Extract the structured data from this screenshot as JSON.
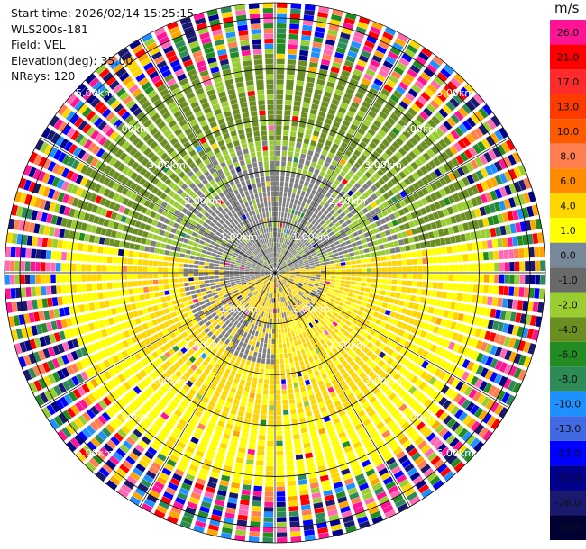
{
  "header": {
    "start_time": "Start time: 2026/02/14 15:25:15",
    "instrument": "WLS200s-181",
    "field": "Field: VEL",
    "elevation": "Elevation(deg): 35.00",
    "nrays": "NRays: 120"
  },
  "chart_data": {
    "type": "heatmap",
    "projection": "polar-ppi",
    "field": "VEL",
    "units": "m/s",
    "n_rays": 120,
    "range_rings_km": [
      1,
      2,
      3,
      4,
      5
    ],
    "ring_labels": [
      "1.00km",
      "2.00km",
      "3.00km",
      "4.00km",
      "5.00km"
    ],
    "max_range_km": 5.3,
    "spokes_deg": [
      0,
      30,
      60,
      90,
      120,
      150,
      180,
      210,
      240,
      270,
      300,
      330
    ],
    "colorbar": {
      "labels": [
        "26.0",
        "21.0",
        "17.0",
        "13.0",
        "10.0",
        "8.0",
        "6.0",
        "4.0",
        "1.0",
        "0.0",
        "-1.0",
        "-2.0",
        "-4.0",
        "-6.0",
        "-8.0",
        "-10.0",
        "-13.0",
        "-17.0",
        "-21.0",
        "-26.0",
        "-30.0"
      ],
      "colors": [
        "#ff1493",
        "#ff0000",
        "#ff2a2a",
        "#ff3c00",
        "#ff5a00",
        "#ff7f50",
        "#ff8c00",
        "#ffd700",
        "#ffff00",
        "#778899",
        "#696969",
        "#9acd32",
        "#6b8e23",
        "#228b22",
        "#2e8b57",
        "#1e90ff",
        "#4169e1",
        "#0000ff",
        "#00008b",
        "#191970",
        "#000033"
      ]
    }
  },
  "palette": {
    "gray": "#808080",
    "olive": "#6b8e23",
    "yellowgreen": "#9acd32",
    "gold": "#ffd700",
    "yellow": "#ffff00",
    "noise": [
      "#ff1493",
      "#ff0000",
      "#ff7f50",
      "#ffd700",
      "#1e90ff",
      "#0000ff",
      "#00008b",
      "#2e8b57",
      "#228b22",
      "#9acd32",
      "#ff69b4",
      "#ffa500",
      "#191970"
    ]
  }
}
